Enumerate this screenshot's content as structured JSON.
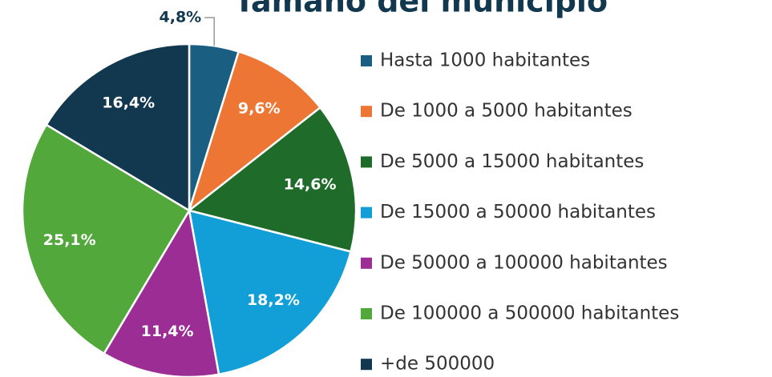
{
  "chart_data": {
    "type": "pie",
    "title": "Tamaño del municipio",
    "categories": [
      "Hasta 1000 habitantes",
      "De 1000 a 5000 habitantes",
      "De 5000 a 15000 habitantes",
      "De 15000 a 50000 habitantes",
      "De 50000 a 100000 habitantes",
      "De 100000 a 500000 habitantes",
      "+de 500000"
    ],
    "values": [
      4.8,
      9.6,
      14.6,
      18.2,
      11.4,
      25.1,
      16.4
    ],
    "value_labels": [
      "4,8%",
      "9,6%",
      "14,6%",
      "18,2%",
      "11,4%",
      "25,1%",
      "16,4%"
    ],
    "colors": [
      "#1a5f82",
      "#ed7634",
      "#1e6b2a",
      "#129fd8",
      "#9b2d94",
      "#52a83a",
      "#11384f"
    ],
    "legend": "right"
  }
}
